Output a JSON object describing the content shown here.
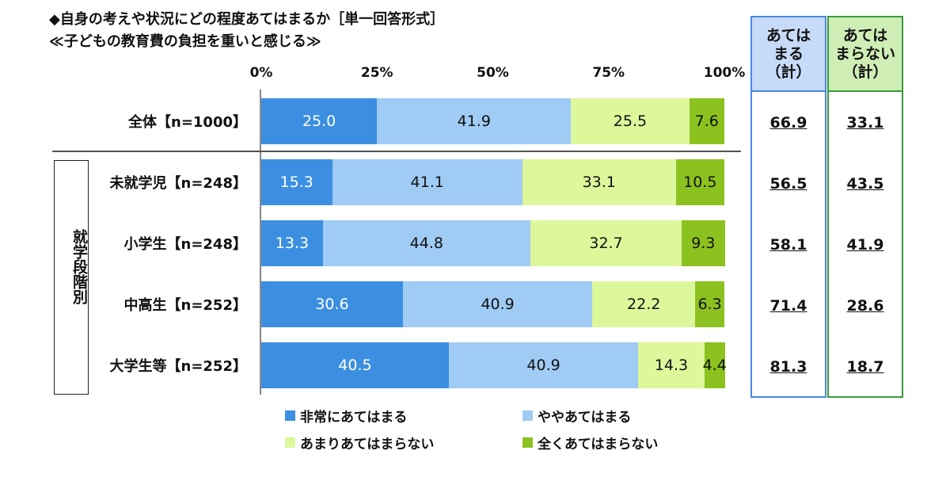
{
  "title_line1": "◆自身の考えや状況にどの程度あてはまるか［単一回答形式］",
  "title_line2": "≪子どもの教育費の負担を重いと感じる≫",
  "group_label": "就学段階別",
  "summary": {
    "yes_header": "あては\nまる\n（計）",
    "no_header": "あては\nまらない\n（計）"
  },
  "colors": {
    "c0": "#3c8fe0",
    "c1": "#9fcbf5",
    "c2": "#ddf79b",
    "c3": "#8cc21f"
  },
  "chart_data": {
    "type": "bar",
    "orientation": "horizontal",
    "stacked": true,
    "xlim": [
      0,
      100
    ],
    "x_ticks": [
      "0%",
      "25%",
      "50%",
      "75%",
      "100%"
    ],
    "categories": [
      "全体【n=1000】",
      "未就学児【n=248】",
      "小学生【n=248】",
      "中高生【n=252】",
      "大学生等【n=252】"
    ],
    "series": [
      {
        "name": "非常にあてはまる",
        "values": [
          25.0,
          15.3,
          13.3,
          30.6,
          40.5
        ]
      },
      {
        "name": "ややあてはまる",
        "values": [
          41.9,
          41.1,
          44.8,
          40.9,
          40.9
        ]
      },
      {
        "name": "あまりあてはまらない",
        "values": [
          25.5,
          33.1,
          32.7,
          22.2,
          14.3
        ]
      },
      {
        "name": "全くあてはまらない",
        "values": [
          7.6,
          10.5,
          9.3,
          6.3,
          4.4
        ]
      }
    ],
    "value_labels": [
      [
        "25.0",
        "41.9",
        "25.5",
        "7.6"
      ],
      [
        "15.3",
        "41.1",
        "33.1",
        "10.5"
      ],
      [
        "13.3",
        "44.8",
        "32.7",
        "9.3"
      ],
      [
        "30.6",
        "40.9",
        "22.2",
        "6.3"
      ],
      [
        "40.5",
        "40.9",
        "14.3",
        "4.4"
      ]
    ],
    "totals_yes": [
      "66.9",
      "56.5",
      "58.1",
      "71.4",
      "81.3"
    ],
    "totals_no": [
      "33.1",
      "43.5",
      "41.9",
      "28.6",
      "18.7"
    ]
  }
}
